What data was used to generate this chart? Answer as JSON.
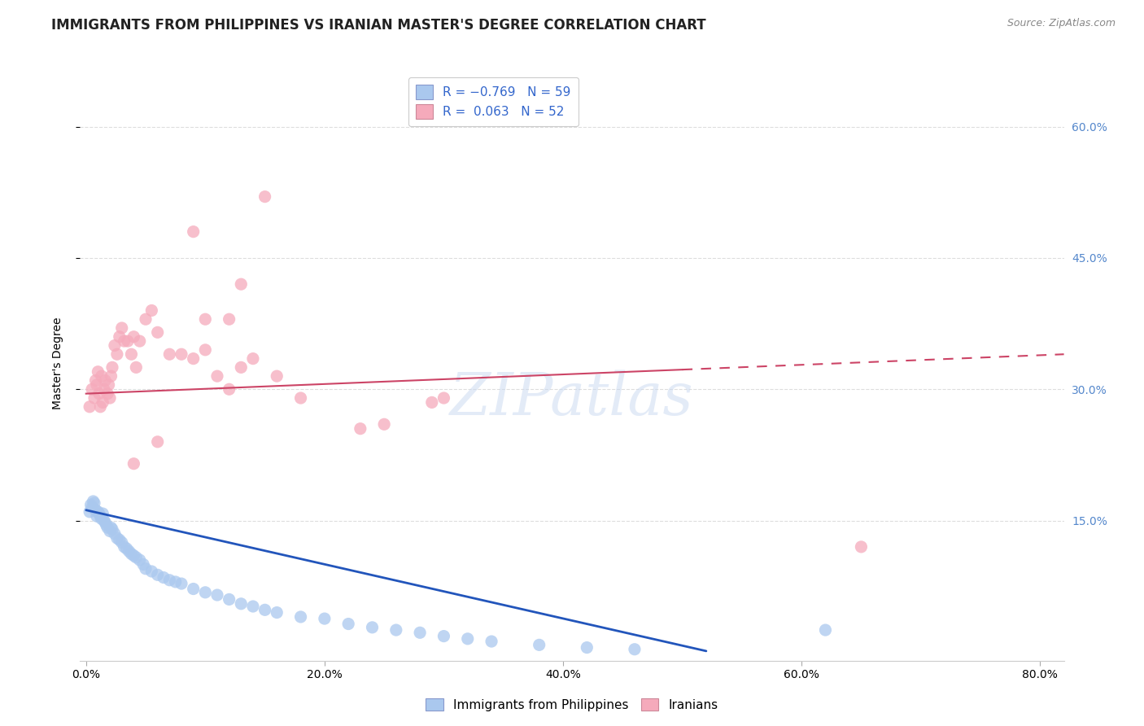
{
  "title": "IMMIGRANTS FROM PHILIPPINES VS IRANIAN MASTER'S DEGREE CORRELATION CHART",
  "source": "Source: ZipAtlas.com",
  "ylabel": "Master's Degree",
  "xlabel_ticks": [
    "0.0%",
    "20.0%",
    "40.0%",
    "60.0%",
    "80.0%"
  ],
  "xlabel_vals": [
    0.0,
    0.2,
    0.4,
    0.6,
    0.8
  ],
  "ylabel_ticks": [
    "15.0%",
    "30.0%",
    "45.0%",
    "60.0%"
  ],
  "ylabel_vals": [
    0.15,
    0.3,
    0.45,
    0.6
  ],
  "xlim": [
    -0.005,
    0.82
  ],
  "ylim": [
    -0.01,
    0.67
  ],
  "blue_color": "#aac8ee",
  "pink_color": "#f5aabb",
  "blue_line_color": "#2255bb",
  "pink_line_color": "#cc4466",
  "watermark": "ZIPatlas",
  "grid_color": "#dddddd",
  "bg_color": "#ffffff",
  "title_fontsize": 12,
  "source_fontsize": 9,
  "axis_tick_fontsize": 10,
  "right_tick_color": "#5588cc",
  "blue_points_x": [
    0.003,
    0.004,
    0.005,
    0.006,
    0.007,
    0.008,
    0.009,
    0.01,
    0.011,
    0.012,
    0.013,
    0.014,
    0.015,
    0.016,
    0.017,
    0.018,
    0.02,
    0.021,
    0.022,
    0.024,
    0.026,
    0.028,
    0.03,
    0.032,
    0.034,
    0.036,
    0.038,
    0.04,
    0.042,
    0.045,
    0.048,
    0.05,
    0.055,
    0.06,
    0.065,
    0.07,
    0.075,
    0.08,
    0.09,
    0.1,
    0.11,
    0.12,
    0.13,
    0.14,
    0.15,
    0.16,
    0.18,
    0.2,
    0.22,
    0.24,
    0.26,
    0.28,
    0.3,
    0.32,
    0.34,
    0.38,
    0.42,
    0.46,
    0.62
  ],
  "blue_points_y": [
    0.16,
    0.168,
    0.165,
    0.172,
    0.17,
    0.162,
    0.155,
    0.16,
    0.158,
    0.155,
    0.152,
    0.158,
    0.15,
    0.148,
    0.145,
    0.142,
    0.138,
    0.142,
    0.14,
    0.135,
    0.13,
    0.128,
    0.125,
    0.12,
    0.118,
    0.115,
    0.112,
    0.11,
    0.108,
    0.105,
    0.1,
    0.095,
    0.092,
    0.088,
    0.085,
    0.082,
    0.08,
    0.078,
    0.072,
    0.068,
    0.065,
    0.06,
    0.055,
    0.052,
    0.048,
    0.045,
    0.04,
    0.038,
    0.032,
    0.028,
    0.025,
    0.022,
    0.018,
    0.015,
    0.012,
    0.008,
    0.005,
    0.003,
    0.025
  ],
  "pink_points_x": [
    0.003,
    0.005,
    0.007,
    0.008,
    0.009,
    0.01,
    0.011,
    0.012,
    0.013,
    0.014,
    0.015,
    0.016,
    0.018,
    0.019,
    0.02,
    0.021,
    0.022,
    0.024,
    0.026,
    0.028,
    0.03,
    0.032,
    0.035,
    0.038,
    0.04,
    0.042,
    0.045,
    0.05,
    0.055,
    0.06,
    0.07,
    0.08,
    0.09,
    0.1,
    0.11,
    0.12,
    0.13,
    0.14,
    0.16,
    0.18,
    0.25,
    0.29,
    0.1,
    0.12,
    0.13,
    0.09,
    0.15,
    0.3,
    0.65,
    0.23,
    0.06,
    0.04
  ],
  "pink_points_y": [
    0.28,
    0.3,
    0.29,
    0.31,
    0.305,
    0.32,
    0.295,
    0.28,
    0.315,
    0.285,
    0.3,
    0.31,
    0.295,
    0.305,
    0.29,
    0.315,
    0.325,
    0.35,
    0.34,
    0.36,
    0.37,
    0.355,
    0.355,
    0.34,
    0.36,
    0.325,
    0.355,
    0.38,
    0.39,
    0.365,
    0.34,
    0.34,
    0.335,
    0.345,
    0.315,
    0.3,
    0.325,
    0.335,
    0.315,
    0.29,
    0.26,
    0.285,
    0.38,
    0.38,
    0.42,
    0.48,
    0.52,
    0.29,
    0.12,
    0.255,
    0.24,
    0.215
  ],
  "blue_line_x0": 0.0,
  "blue_line_y0": 0.162,
  "blue_line_x1": 0.52,
  "blue_line_y1": 0.001,
  "pink_line_x0": 0.0,
  "pink_line_y0": 0.295,
  "pink_line_x1": 0.82,
  "pink_line_y1": 0.34
}
